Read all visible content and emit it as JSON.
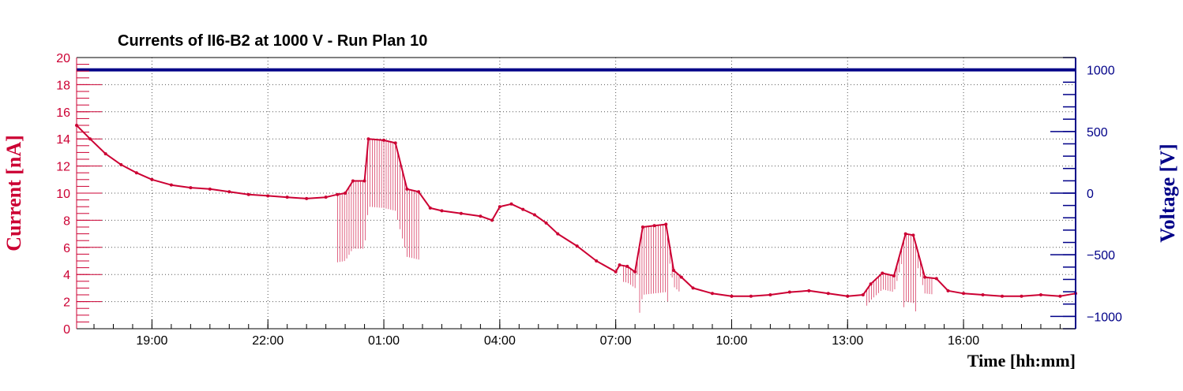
{
  "chart_data": {
    "type": "line",
    "title": "Currents of II6-B2 at 1000 V - Run Plan 10",
    "xlabel": "Time [hh:mm]",
    "ylabel_left": "Current [nA]",
    "ylabel_right": "Voltage [V]",
    "x_tick_labels": [
      "19:00",
      "22:00",
      "01:00",
      "04:00",
      "07:00",
      "10:00",
      "13:00",
      "16:00"
    ],
    "x_tick_hours": [
      19,
      22,
      25,
      28,
      31,
      34,
      37,
      40
    ],
    "xlim_hours": [
      17.05,
      42.9
    ],
    "ylim_left": [
      0,
      20
    ],
    "y_ticks_left": [
      0,
      2,
      4,
      6,
      8,
      10,
      12,
      14,
      16,
      18,
      20
    ],
    "ylim_right": [
      -1100,
      1100
    ],
    "y_ticks_right": [
      -1000,
      -500,
      0,
      500,
      1000
    ],
    "y_tick_labels_right": [
      "−1000",
      "−500",
      "0",
      "500",
      "1000"
    ],
    "grid": true,
    "colors": {
      "current": "#cc0033",
      "voltage": "#000088"
    },
    "series": [
      {
        "name": "Current",
        "axis": "left",
        "x": [
          17.05,
          17.4,
          17.8,
          18.2,
          18.6,
          19.0,
          19.5,
          20.0,
          20.5,
          21.0,
          21.5,
          22.0,
          22.5,
          23.0,
          23.5,
          23.8,
          24.0,
          24.2,
          24.5,
          24.6,
          25.0,
          25.3,
          25.6,
          25.9,
          26.2,
          26.5,
          27.0,
          27.5,
          27.8,
          28.0,
          28.3,
          28.6,
          28.9,
          29.2,
          29.5,
          30.0,
          30.5,
          31.0,
          31.1,
          31.3,
          31.5,
          31.7,
          32.0,
          32.3,
          32.5,
          32.7,
          33.0,
          33.5,
          34.0,
          34.5,
          35.0,
          35.5,
          36.0,
          36.5,
          37.0,
          37.4,
          37.6,
          37.9,
          38.2,
          38.5,
          38.7,
          39.0,
          39.3,
          39.6,
          40.0,
          40.5,
          41.0,
          41.5,
          42.0,
          42.5,
          42.9
        ],
        "y": [
          15.0,
          14.0,
          12.9,
          12.1,
          11.5,
          11.0,
          10.6,
          10.4,
          10.3,
          10.1,
          9.9,
          9.8,
          9.7,
          9.6,
          9.7,
          9.9,
          10.0,
          10.9,
          10.9,
          14.0,
          13.9,
          13.7,
          10.3,
          10.1,
          8.9,
          8.7,
          8.5,
          8.3,
          8.0,
          9.0,
          9.2,
          8.8,
          8.4,
          7.8,
          7.0,
          6.1,
          5.0,
          4.2,
          4.7,
          4.6,
          4.2,
          7.5,
          7.6,
          7.7,
          4.3,
          3.8,
          3.0,
          2.6,
          2.4,
          2.4,
          2.5,
          2.7,
          2.8,
          2.6,
          2.4,
          2.5,
          3.3,
          4.1,
          3.9,
          7.0,
          6.9,
          3.8,
          3.7,
          2.8,
          2.6,
          2.5,
          2.4,
          2.4,
          2.5,
          2.4,
          2.6
        ]
      },
      {
        "name": "Voltage",
        "axis": "right",
        "x": [
          17.05,
          42.9
        ],
        "y": [
          1000,
          1000
        ]
      }
    ]
  }
}
